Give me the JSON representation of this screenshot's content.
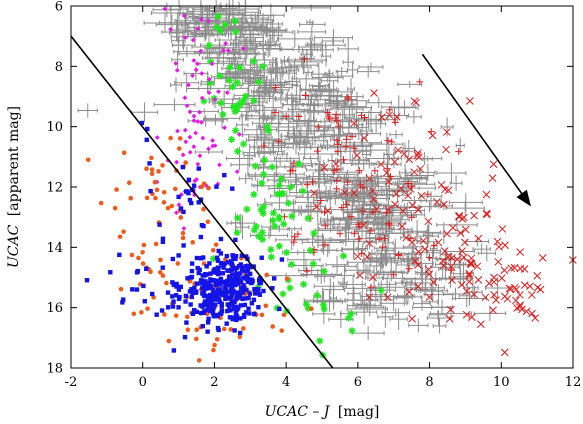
{
  "chart_data": {
    "type": "scatter",
    "title": "",
    "x_axis": {
      "label_italic": "UCAC – J",
      "label_unit": "[mag]",
      "range": [
        -2,
        12
      ],
      "ticks": [
        "-2",
        "0",
        "2",
        "4",
        "6",
        "8",
        "10",
        "12"
      ]
    },
    "y_axis": {
      "label_italic": "UCAC",
      "label_unit": "[apparent mag]",
      "range": [
        6,
        18
      ],
      "inverted": true,
      "ticks": [
        "6",
        "8",
        "10",
        "12",
        "14",
        "16",
        "18"
      ]
    },
    "grid": false,
    "legend": "none",
    "series": [
      {
        "id": "gray-errorbars",
        "marker": "plus-with-errorbars",
        "color": "#8c8c8c",
        "clusters": [
          {
            "cx": 2.2,
            "cy": 6.5,
            "sx": 0.9,
            "sy": 0.6,
            "n": 110
          },
          {
            "cx": 3.5,
            "cy": 8.2,
            "sx": 1.2,
            "sy": 0.9,
            "n": 160
          },
          {
            "cx": 4.7,
            "cy": 10.2,
            "sx": 1.3,
            "sy": 1.0,
            "n": 170
          },
          {
            "cx": 5.9,
            "cy": 12.2,
            "sx": 1.3,
            "sy": 1.0,
            "n": 150
          },
          {
            "cx": 7.0,
            "cy": 14.2,
            "sx": 1.4,
            "sy": 0.9,
            "n": 120
          },
          {
            "cx": 7.2,
            "cy": 15.6,
            "sx": 1.5,
            "sy": 0.6,
            "n": 60
          }
        ]
      },
      {
        "id": "red-cross",
        "marker": "x",
        "color": "#dd1c1c",
        "clusters": [
          {
            "cx": 7.4,
            "cy": 11.6,
            "sx": 1.1,
            "sy": 1.2,
            "n": 55
          },
          {
            "cx": 9.0,
            "cy": 14.6,
            "sx": 1.3,
            "sy": 0.9,
            "n": 85
          },
          {
            "cx": 10.5,
            "cy": 15.8,
            "sx": 0.6,
            "sy": 0.5,
            "n": 25
          }
        ]
      },
      {
        "id": "red-plus",
        "marker": "plus",
        "color": "#dd1c1c",
        "clusters": [
          {
            "cx": 5.4,
            "cy": 10.5,
            "sx": 1.1,
            "sy": 1.4,
            "n": 55
          },
          {
            "cx": 6.3,
            "cy": 13.5,
            "sx": 1.0,
            "sy": 1.2,
            "n": 40
          }
        ]
      },
      {
        "id": "green",
        "marker": "star",
        "color": "#1fe81f",
        "clusters": [
          {
            "cx": 2.4,
            "cy": 8.5,
            "sx": 0.6,
            "sy": 1.3,
            "n": 35
          },
          {
            "cx": 3.7,
            "cy": 12.8,
            "sx": 0.6,
            "sy": 1.1,
            "n": 45
          },
          {
            "cx": 4.8,
            "cy": 15.5,
            "sx": 0.7,
            "sy": 0.9,
            "n": 20
          }
        ]
      },
      {
        "id": "magenta",
        "marker": "diamond",
        "color": "#e619e6",
        "clusters": [
          {
            "cx": 1.7,
            "cy": 8.4,
            "sx": 0.5,
            "sy": 1.3,
            "n": 40
          },
          {
            "cx": 1.2,
            "cy": 11.2,
            "sx": 0.6,
            "sy": 1.1,
            "n": 35
          }
        ]
      },
      {
        "id": "orange",
        "marker": "circle",
        "color": "#f05a1a",
        "clusters": [
          {
            "cx": 0.6,
            "cy": 12.8,
            "sx": 0.8,
            "sy": 1.3,
            "n": 55
          },
          {
            "cx": 2.1,
            "cy": 15.7,
            "sx": 1.1,
            "sy": 0.8,
            "n": 70
          }
        ]
      },
      {
        "id": "blue",
        "marker": "square",
        "color": "#1414e6",
        "clusters": [
          {
            "cx": 2.3,
            "cy": 15.4,
            "sx": 0.55,
            "sy": 0.55,
            "n": 330
          },
          {
            "cx": 1.3,
            "cy": 12.5,
            "sx": 0.7,
            "sy": 1.6,
            "n": 35
          },
          {
            "cx": 0.3,
            "cy": 15.2,
            "sx": 0.7,
            "sy": 0.8,
            "n": 30
          }
        ]
      }
    ],
    "divider_line": {
      "x": [
        -2,
        5.3
      ],
      "y": [
        7.0,
        18.0
      ],
      "color": "#000000"
    },
    "arrow": {
      "from": [
        7.8,
        7.6
      ],
      "to": [
        10.8,
        12.6
      ],
      "color": "#000000"
    }
  }
}
